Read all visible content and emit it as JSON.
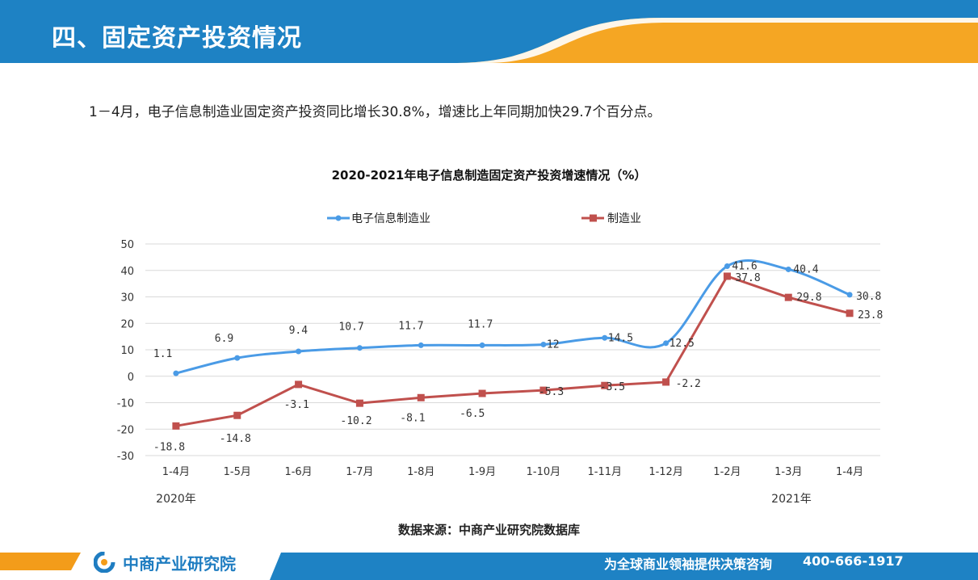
{
  "header": {
    "title": "四、固定资产投资情况"
  },
  "summary": "1－4月，电子信息制造业固定资产投资同比增长30.8%，增速比上年同期加快29.7个百分点。",
  "chart_data": {
    "type": "line",
    "title": "2020-2021年电子信息制造固定资产投资增速情况（%）",
    "categories": [
      "1-4月",
      "1-5月",
      "1-6月",
      "1-7月",
      "1-8月",
      "1-9月",
      "1-10月",
      "1-11月",
      "1-12月",
      "1-2月",
      "1-3月",
      "1-4月"
    ],
    "year_labels": [
      "2020年",
      "2021年"
    ],
    "series": [
      {
        "name": "电子信息制造业",
        "color": "#4a9be6",
        "values": [
          1.1,
          6.9,
          9.4,
          10.7,
          11.7,
          11.7,
          12,
          14.5,
          12.5,
          41.6,
          40.4,
          30.8
        ]
      },
      {
        "name": "制造业",
        "color": "#c0504d",
        "values": [
          -18.8,
          -14.8,
          -3.1,
          -10.2,
          -8.1,
          -6.5,
          -5.3,
          -3.5,
          -2.2,
          37.8,
          29.8,
          23.8
        ]
      }
    ],
    "ylim": [
      -30,
      50
    ],
    "yticks": [
      -30,
      -20,
      -10,
      0,
      10,
      20,
      30,
      40,
      50
    ],
    "grid": true,
    "legend": "top"
  },
  "source": "数据来源：中商产业研究院数据库",
  "footer": {
    "logo": "中商产业研究院",
    "slogan": "为全球商业领袖提供决策咨询",
    "phone": "400-666-1917"
  },
  "colors": {
    "header_blue": "#1e82c4",
    "accent_orange": "#f39c1a"
  }
}
